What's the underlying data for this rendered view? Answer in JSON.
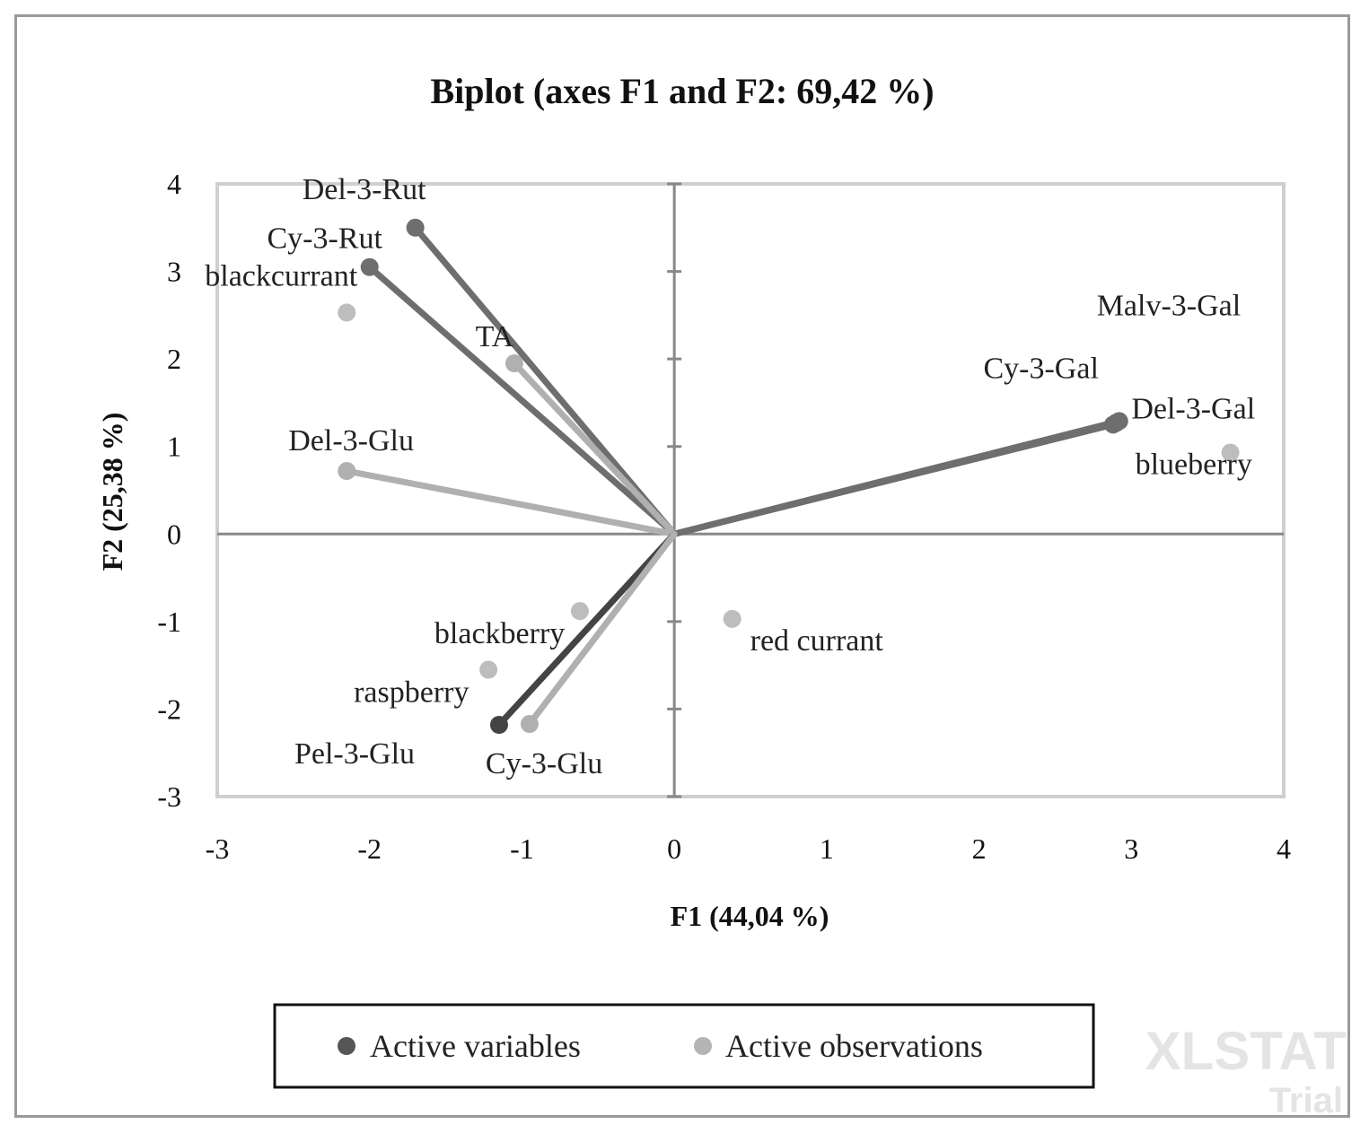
{
  "chart_data": {
    "type": "scatter",
    "subtype": "biplot",
    "title": "Biplot (axes F1 and F2: 69,42 %)",
    "xlabel": "F1 (44,04 %)",
    "ylabel": "F2 (25,38 %)",
    "xlim": [
      -3,
      4
    ],
    "ylim": [
      -3,
      4
    ],
    "xticks": [
      "-3",
      "-2",
      "-1",
      "0",
      "1",
      "2",
      "3",
      "4"
    ],
    "yticks": [
      "-3",
      "-2",
      "-1",
      "0",
      "1",
      "2",
      "3",
      "4"
    ],
    "grid": false,
    "legend": {
      "placement": "bottom",
      "items": [
        {
          "name": "Active variables",
          "color": "#555555"
        },
        {
          "name": "Active observations",
          "color": "#b4b4b4"
        }
      ]
    },
    "variables": [
      {
        "name": "Del-3-Rut",
        "x": -1.7,
        "y": 3.5
      },
      {
        "name": "Cy-3-Rut",
        "x": -2.0,
        "y": 3.05
      },
      {
        "name": "TA",
        "x": -1.05,
        "y": 1.95
      },
      {
        "name": "Del-3-Glu",
        "x": -2.15,
        "y": 0.72
      },
      {
        "name": "Del-3-Gal",
        "x": 2.9,
        "y": 1.27
      },
      {
        "name": "Cy-3-Gal",
        "x": 2.88,
        "y": 1.25
      },
      {
        "name": "Malv-3-Gal",
        "x": 2.92,
        "y": 1.29
      },
      {
        "name": "Pel-3-Glu",
        "x": -1.15,
        "y": -2.18
      },
      {
        "name": "Cy-3-Glu",
        "x": -0.95,
        "y": -2.17
      }
    ],
    "observations": [
      {
        "name": "blackcurrant",
        "x": -2.15,
        "y": 2.53
      },
      {
        "name": "blueberry",
        "x": 3.65,
        "y": 0.93
      },
      {
        "name": "blackberry",
        "x": -0.62,
        "y": -0.88
      },
      {
        "name": "raspberry",
        "x": -1.22,
        "y": -1.55
      },
      {
        "name": "red currant",
        "x": 0.38,
        "y": -0.97
      }
    ]
  },
  "watermark": {
    "brand": "XLSTAT",
    "edition": "Trial"
  },
  "colors": {
    "variable_dark": "#444444",
    "variable_mid": "#6e6e6e",
    "variable_light": "#b0b0b0",
    "observation": "#bdbdbd",
    "plot_border": "#cfcfcf",
    "axis": "#888888"
  }
}
